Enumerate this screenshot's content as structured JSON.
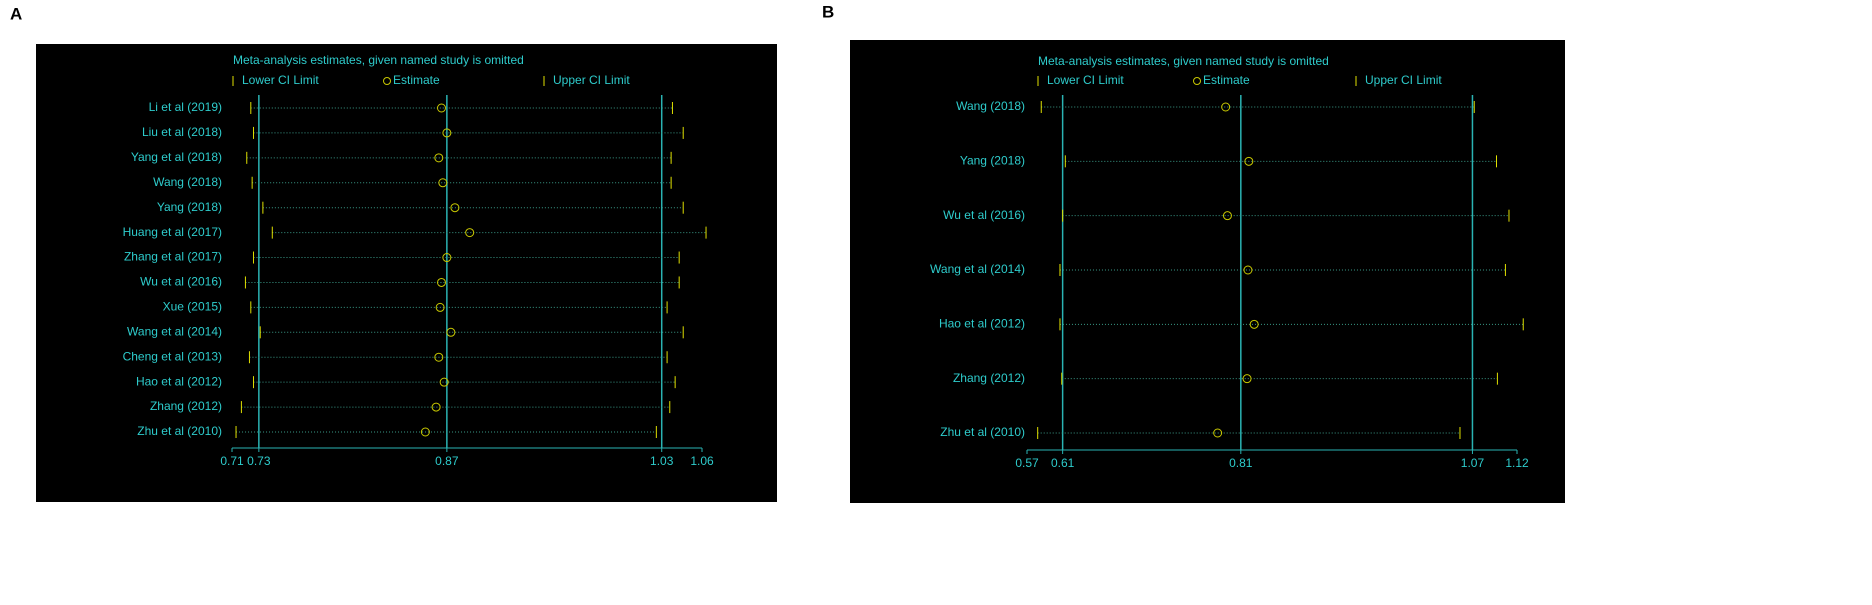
{
  "chart_data": [
    {
      "type": "interval",
      "panel": "A",
      "title": "Meta-analysis estimates, given named study is omitted",
      "categories": [
        "Li et al (2019)",
        "Liu et al (2018)",
        "Yang et al (2018)",
        "Wang  (2018)",
        "Yang (2018)",
        "Huang et al (2017)",
        "Zhang et al (2017)",
        "Wu et al (2016)",
        "Xue (2015)",
        "Wang et al (2014)",
        "Cheng et al (2013)",
        "Hao et al (2012)",
        "Zhang (2012)",
        "Zhu et al (2010)"
      ],
      "series": [
        {
          "name": "Lower CI Limit",
          "marker": "line",
          "color": "#e0e000",
          "values": [
            0.724,
            0.726,
            0.721,
            0.725,
            0.733,
            0.74,
            0.726,
            0.72,
            0.724,
            0.731,
            0.723,
            0.726,
            0.717,
            0.713
          ]
        },
        {
          "name": "Estimate",
          "marker": "circle",
          "color": "#c8c800",
          "values": [
            0.866,
            0.87,
            0.864,
            0.867,
            0.876,
            0.887,
            0.87,
            0.866,
            0.865,
            0.873,
            0.864,
            0.868,
            0.862,
            0.854
          ]
        },
        {
          "name": "Upper CI Limit",
          "marker": "line",
          "color": "#e0e000",
          "values": [
            1.038,
            1.046,
            1.037,
            1.037,
            1.046,
            1.063,
            1.043,
            1.043,
            1.034,
            1.046,
            1.034,
            1.04,
            1.036,
            1.026
          ]
        }
      ],
      "xlim": [
        0.71,
        1.06
      ],
      "xticks": [
        0.71,
        0.73,
        0.87,
        1.03,
        1.06
      ],
      "ref_lines": [
        0.73,
        0.87,
        1.03
      ]
    },
    {
      "type": "interval",
      "panel": "B",
      "title": "Meta-analysis estimates, given named study is omitted",
      "categories": [
        "Wang  (2018)",
        "Yang (2018)",
        "Wu et al (2016)",
        "Wang et al (2014)",
        "Hao et al (2012)",
        "Zhang (2012)",
        "Zhu et al (2010)"
      ],
      "series": [
        {
          "name": "Lower CI Limit",
          "marker": "line",
          "color": "#e0e000",
          "values": [
            0.586,
            0.613,
            0.61,
            0.607,
            0.607,
            0.609,
            0.582
          ]
        },
        {
          "name": "Estimate",
          "marker": "circle",
          "color": "#c8c800",
          "values": [
            0.793,
            0.819,
            0.795,
            0.818,
            0.825,
            0.817,
            0.784
          ]
        },
        {
          "name": "Upper CI Limit",
          "marker": "line",
          "color": "#e0e000",
          "values": [
            1.072,
            1.097,
            1.111,
            1.107,
            1.127,
            1.098,
            1.056
          ]
        }
      ],
      "xlim": [
        0.57,
        1.12
      ],
      "xticks": [
        0.57,
        0.61,
        0.81,
        1.07,
        1.12
      ],
      "ref_lines": [
        0.61,
        0.81,
        1.07
      ]
    }
  ]
}
